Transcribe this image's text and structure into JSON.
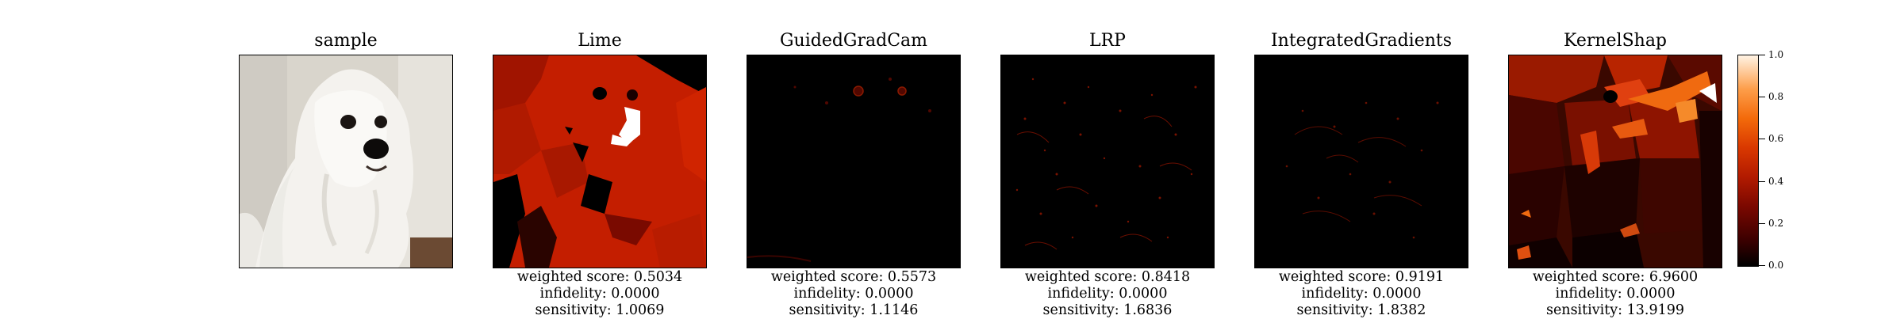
{
  "panels": [
    {
      "title": "sample"
    },
    {
      "title": "Lime",
      "metrics": {
        "weighted": "weighted score: 0.5034",
        "infidelity": "infidelity: 0.0000",
        "sensitivity": "sensitivity: 1.0069"
      }
    },
    {
      "title": "GuidedGradCam",
      "metrics": {
        "weighted": "weighted score: 0.5573",
        "infidelity": "infidelity: 0.0000",
        "sensitivity": "sensitivity: 1.1146"
      }
    },
    {
      "title": "LRP",
      "metrics": {
        "weighted": "weighted score: 0.8418",
        "infidelity": "infidelity: 0.0000",
        "sensitivity": "sensitivity: 1.6836"
      }
    },
    {
      "title": "IntegratedGradients",
      "metrics": {
        "weighted": "weighted score: 0.9191",
        "infidelity": "infidelity: 0.0000",
        "sensitivity": "sensitivity: 1.8382"
      }
    },
    {
      "title": "KernelShap",
      "metrics": {
        "weighted": "weighted score: 6.9600",
        "infidelity": "infidelity: 0.0000",
        "sensitivity": "sensitivity: 13.9199"
      }
    }
  ],
  "colorbar": {
    "ticks": [
      "0.0",
      "0.2",
      "0.4",
      "0.6",
      "0.8",
      "1.0"
    ],
    "colormap": [
      "#000000",
      "#7a0800",
      "#d93800",
      "#fd9e4a",
      "#ffffff"
    ]
  }
}
